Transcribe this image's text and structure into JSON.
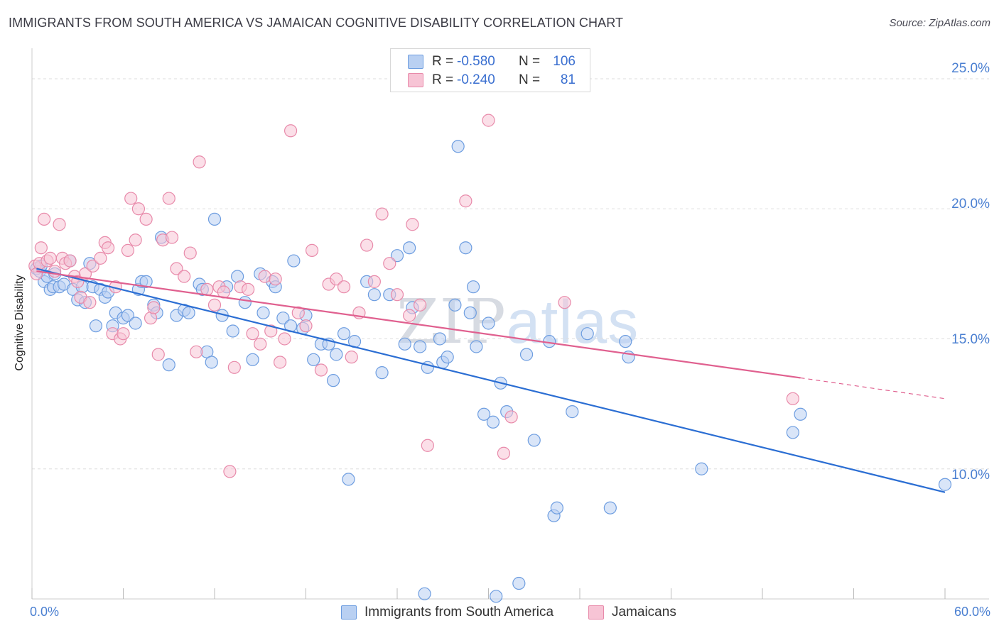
{
  "title": "IMMIGRANTS FROM SOUTH AMERICA VS JAMAICAN COGNITIVE DISABILITY CORRELATION CHART",
  "source": "Source: ZipAtlas.com",
  "watermark": {
    "zip": "ZIP",
    "atlas": "atlas"
  },
  "colors": {
    "blue": "#6d9de0",
    "blue_fill": "#b9d0f2",
    "blue_line": "#2b6ed3",
    "pink": "#e88aaa",
    "pink_fill": "#f7c4d5",
    "pink_line": "#e0608f",
    "tick_text": "#4a7fd1",
    "grid": "#dedede"
  },
  "legend": {
    "rows": [
      {
        "r_label": "R =",
        "r_value": "-0.580",
        "n_label": "N =",
        "n_value": "106"
      },
      {
        "r_label": "R =",
        "r_value": "-0.240",
        "n_label": "N =",
        "n_value": "81"
      }
    ]
  },
  "chart_data": {
    "type": "scatter",
    "title": "IMMIGRANTS FROM SOUTH AMERICA VS JAMAICAN COGNITIVE DISABILITY CORRELATION CHART",
    "xlabel": "",
    "ylabel": "Cognitive Disability",
    "xlim": [
      0,
      60
    ],
    "ylim": [
      5,
      25.9
    ],
    "x_tick_labels": [
      "0.0%",
      "60.0%"
    ],
    "y_ticks": [
      10,
      15,
      20,
      25
    ],
    "y_tick_labels": [
      "10.0%",
      "15.0%",
      "20.0%",
      "25.0%"
    ],
    "grid": true,
    "legend_position": "top-center",
    "series": [
      {
        "name": "Immigrants from South America",
        "color": "#6d9de0",
        "r": -0.58,
        "n": 106,
        "trend": {
          "x0": 0.3,
          "y0": 17.7,
          "x1": 60,
          "y1": 9.1
        },
        "points": [
          [
            0.3,
            17.7
          ],
          [
            0.5,
            17.6
          ],
          [
            0.6,
            17.8
          ],
          [
            0.8,
            17.2
          ],
          [
            1.0,
            17.4
          ],
          [
            1.2,
            16.9
          ],
          [
            1.4,
            17.0
          ],
          [
            1.5,
            17.5
          ],
          [
            1.8,
            17.0
          ],
          [
            2.1,
            17.1
          ],
          [
            2.5,
            18.0
          ],
          [
            2.7,
            16.9
          ],
          [
            3.0,
            16.5
          ],
          [
            3.3,
            17.0
          ],
          [
            3.5,
            16.4
          ],
          [
            3.8,
            17.9
          ],
          [
            4.0,
            17.0
          ],
          [
            4.2,
            15.5
          ],
          [
            4.5,
            16.9
          ],
          [
            4.8,
            16.6
          ],
          [
            5.0,
            16.8
          ],
          [
            5.3,
            15.5
          ],
          [
            5.5,
            16.0
          ],
          [
            6.0,
            15.8
          ],
          [
            6.3,
            15.9
          ],
          [
            6.8,
            15.6
          ],
          [
            7.0,
            16.9
          ],
          [
            7.2,
            17.2
          ],
          [
            7.5,
            17.2
          ],
          [
            8.0,
            16.3
          ],
          [
            8.2,
            16.0
          ],
          [
            8.5,
            18.9
          ],
          [
            9.0,
            14.0
          ],
          [
            9.5,
            15.9
          ],
          [
            10.0,
            16.1
          ],
          [
            10.3,
            16.0
          ],
          [
            11.0,
            17.1
          ],
          [
            11.2,
            16.9
          ],
          [
            11.5,
            14.5
          ],
          [
            11.8,
            14.1
          ],
          [
            12.0,
            19.6
          ],
          [
            12.5,
            15.9
          ],
          [
            12.8,
            17.0
          ],
          [
            13.2,
            15.3
          ],
          [
            13.5,
            17.4
          ],
          [
            14.0,
            16.4
          ],
          [
            14.5,
            14.2
          ],
          [
            15.0,
            17.5
          ],
          [
            15.2,
            16.0
          ],
          [
            15.8,
            17.2
          ],
          [
            16.0,
            17.0
          ],
          [
            16.5,
            15.8
          ],
          [
            17.0,
            15.5
          ],
          [
            17.2,
            18.0
          ],
          [
            17.8,
            15.4
          ],
          [
            18.0,
            15.9
          ],
          [
            18.5,
            14.2
          ],
          [
            19.0,
            14.8
          ],
          [
            19.5,
            14.8
          ],
          [
            19.8,
            13.4
          ],
          [
            20.0,
            14.4
          ],
          [
            20.5,
            15.2
          ],
          [
            20.8,
            9.6
          ],
          [
            21.2,
            14.9
          ],
          [
            22.0,
            17.2
          ],
          [
            22.5,
            16.7
          ],
          [
            23.0,
            13.7
          ],
          [
            23.5,
            16.7
          ],
          [
            24.0,
            18.2
          ],
          [
            24.5,
            14.8
          ],
          [
            24.8,
            18.5
          ],
          [
            25.0,
            16.2
          ],
          [
            25.5,
            14.7
          ],
          [
            25.8,
            5.2
          ],
          [
            26.0,
            13.9
          ],
          [
            26.8,
            15.0
          ],
          [
            27.0,
            14.1
          ],
          [
            27.3,
            14.3
          ],
          [
            27.8,
            16.3
          ],
          [
            28.0,
            22.4
          ],
          [
            28.5,
            18.5
          ],
          [
            28.8,
            16.0
          ],
          [
            29.0,
            17.0
          ],
          [
            29.2,
            14.7
          ],
          [
            29.7,
            12.1
          ],
          [
            30.0,
            15.6
          ],
          [
            30.3,
            11.8
          ],
          [
            30.5,
            5.1
          ],
          [
            30.8,
            13.3
          ],
          [
            31.2,
            12.2
          ],
          [
            32.0,
            5.6
          ],
          [
            32.5,
            14.4
          ],
          [
            33.0,
            11.1
          ],
          [
            34.0,
            14.9
          ],
          [
            34.3,
            8.2
          ],
          [
            34.5,
            8.5
          ],
          [
            35.5,
            12.2
          ],
          [
            36.5,
            15.2
          ],
          [
            38.0,
            8.5
          ],
          [
            39.0,
            14.9
          ],
          [
            39.2,
            14.3
          ],
          [
            44.0,
            10.0
          ],
          [
            50.0,
            11.4
          ],
          [
            50.5,
            12.1
          ],
          [
            60.0,
            9.4
          ]
        ]
      },
      {
        "name": "Jamaicans",
        "color": "#e88aaa",
        "r": -0.24,
        "n": 81,
        "trend": {
          "x0": 0.3,
          "y0": 17.6,
          "x1": 50.5,
          "y1": 13.5,
          "dashed_to": {
            "x": 60,
            "y": 12.7
          }
        },
        "points": [
          [
            0.2,
            17.8
          ],
          [
            0.3,
            17.5
          ],
          [
            0.5,
            17.9
          ],
          [
            0.6,
            18.5
          ],
          [
            0.8,
            19.6
          ],
          [
            1.0,
            18.0
          ],
          [
            1.2,
            18.1
          ],
          [
            1.5,
            17.6
          ],
          [
            1.8,
            19.4
          ],
          [
            2.0,
            18.1
          ],
          [
            2.2,
            17.9
          ],
          [
            2.5,
            18.0
          ],
          [
            2.8,
            17.4
          ],
          [
            3.0,
            17.2
          ],
          [
            3.2,
            16.6
          ],
          [
            3.5,
            17.5
          ],
          [
            3.8,
            16.4
          ],
          [
            4.0,
            17.8
          ],
          [
            4.5,
            18.1
          ],
          [
            4.8,
            18.7
          ],
          [
            5.0,
            18.5
          ],
          [
            5.3,
            15.2
          ],
          [
            5.5,
            17.0
          ],
          [
            5.8,
            15.0
          ],
          [
            6.0,
            15.2
          ],
          [
            6.3,
            18.4
          ],
          [
            6.5,
            20.4
          ],
          [
            6.8,
            18.8
          ],
          [
            7.0,
            20.0
          ],
          [
            7.5,
            19.6
          ],
          [
            7.8,
            15.8
          ],
          [
            8.0,
            16.2
          ],
          [
            8.3,
            14.4
          ],
          [
            8.6,
            18.8
          ],
          [
            9.0,
            20.4
          ],
          [
            9.2,
            18.9
          ],
          [
            9.5,
            17.7
          ],
          [
            10.0,
            17.4
          ],
          [
            10.4,
            18.3
          ],
          [
            10.8,
            14.5
          ],
          [
            11.0,
            21.8
          ],
          [
            11.5,
            16.9
          ],
          [
            12.0,
            16.3
          ],
          [
            12.3,
            17.0
          ],
          [
            12.6,
            16.8
          ],
          [
            13.0,
            9.9
          ],
          [
            13.3,
            13.9
          ],
          [
            13.7,
            17.0
          ],
          [
            14.2,
            16.9
          ],
          [
            14.5,
            15.2
          ],
          [
            15.0,
            14.8
          ],
          [
            15.3,
            17.4
          ],
          [
            15.7,
            15.3
          ],
          [
            16.0,
            17.3
          ],
          [
            16.3,
            14.1
          ],
          [
            16.6,
            15.0
          ],
          [
            17.0,
            23.0
          ],
          [
            17.5,
            16.0
          ],
          [
            18.0,
            15.5
          ],
          [
            18.4,
            18.4
          ],
          [
            19.0,
            13.8
          ],
          [
            19.5,
            17.1
          ],
          [
            20.0,
            17.3
          ],
          [
            20.5,
            17.0
          ],
          [
            21.0,
            14.3
          ],
          [
            21.5,
            16.0
          ],
          [
            22.0,
            18.6
          ],
          [
            22.5,
            17.2
          ],
          [
            23.0,
            19.8
          ],
          [
            23.5,
            17.9
          ],
          [
            24.0,
            16.7
          ],
          [
            24.8,
            15.9
          ],
          [
            25.0,
            19.4
          ],
          [
            25.5,
            16.3
          ],
          [
            26.0,
            10.9
          ],
          [
            28.5,
            20.3
          ],
          [
            30.0,
            23.4
          ],
          [
            31.0,
            10.6
          ],
          [
            31.5,
            12.0
          ],
          [
            35.0,
            16.4
          ],
          [
            50.0,
            12.7
          ]
        ]
      }
    ]
  },
  "bottom_legend": [
    {
      "label": "Immigrants from South America"
    },
    {
      "label": "Jamaicans"
    }
  ]
}
